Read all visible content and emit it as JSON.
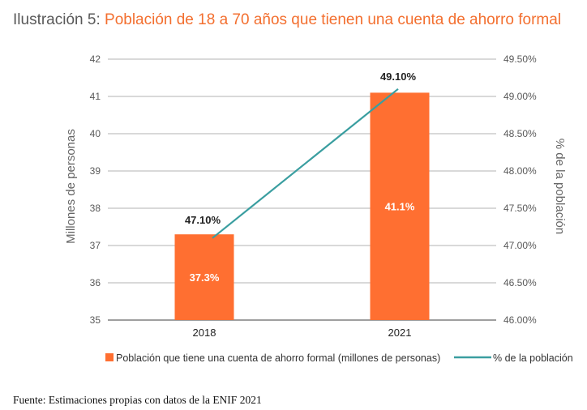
{
  "title": {
    "prefix": "Ilustración 5:",
    "main": "Población de 18 a 70 años que tienen una cuenta de ahorro formal"
  },
  "chart_data": {
    "type": "bar+line",
    "categories": [
      "2018",
      "2021"
    ],
    "series": [
      {
        "name": "Población que tiene una cuenta de ahorro formal (millones de personas)",
        "type": "bar",
        "axis": "left",
        "values": [
          37.3,
          41.1
        ],
        "labels": [
          "37.3%",
          "41.1%"
        ],
        "color": "#ff6f31"
      },
      {
        "name": "% de la población",
        "type": "line",
        "axis": "right",
        "values": [
          47.1,
          49.1
        ],
        "labels": [
          "47.10%",
          "49.10%"
        ],
        "color": "#3a9ea0"
      }
    ],
    "ylabel": "Millones de personas",
    "y2label": "% de la población",
    "ylim": [
      35,
      42
    ],
    "y2lim": [
      46,
      49.5
    ],
    "yticks": [
      "35",
      "36",
      "37",
      "38",
      "39",
      "40",
      "41",
      "42"
    ],
    "y2ticks": [
      "46.00%",
      "46.50%",
      "47.00%",
      "47.50%",
      "48.00%",
      "48.50%",
      "49.00%",
      "49.50%"
    ],
    "grid": true,
    "legend": "bottom"
  },
  "source": "Fuente: Estimaciones propias con datos de la ENIF 2021"
}
